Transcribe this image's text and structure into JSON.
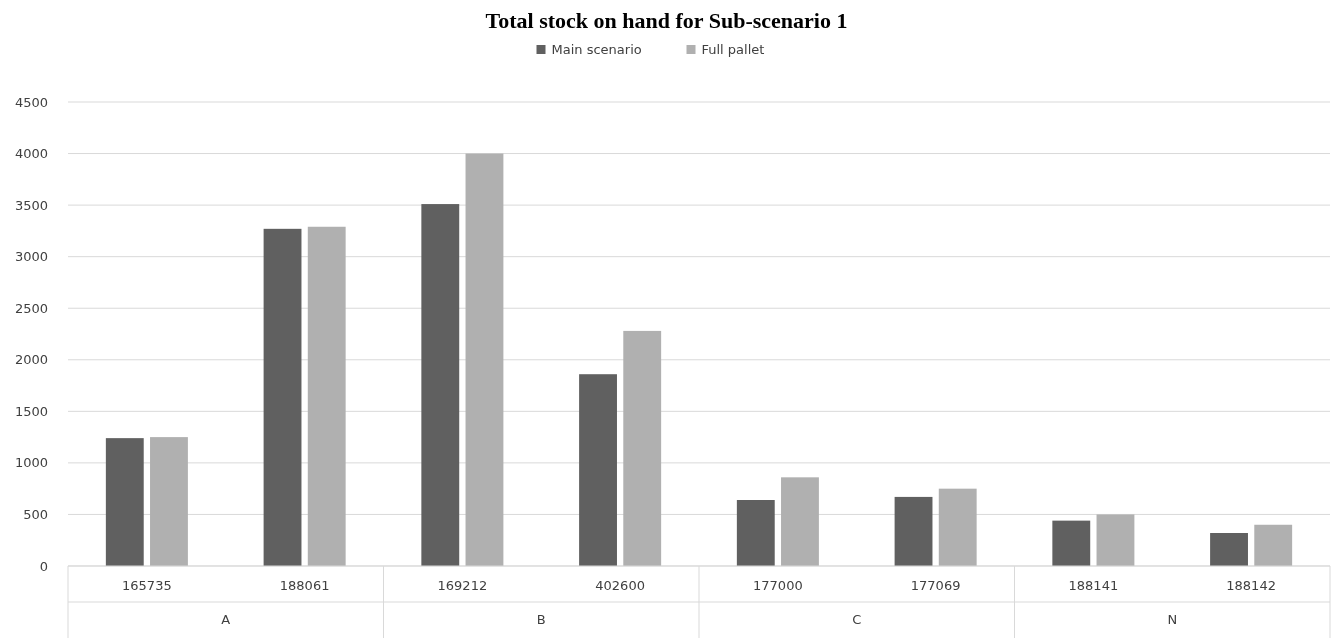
{
  "chart_data": {
    "type": "bar",
    "title": "Total stock on hand for Sub-scenario 1",
    "categories": [
      "165735",
      "188061",
      "169212",
      "402600",
      "177000",
      "177069",
      "188141",
      "188142"
    ],
    "series": [
      {
        "name": "Main scenario",
        "color": "#606060",
        "values": [
          1240,
          3270,
          3510,
          1860,
          640,
          670,
          440,
          320
        ]
      },
      {
        "name": "Full pallet",
        "color": "#b0b0b0",
        "values": [
          1250,
          3290,
          4000,
          2280,
          860,
          750,
          500,
          400
        ]
      }
    ],
    "ylim": [
      0,
      4500
    ],
    "yticks": [
      0,
      500,
      1000,
      1500,
      2000,
      2500,
      3000,
      3500,
      4000,
      4500
    ],
    "grid": "y",
    "legend": "top",
    "annotations": [
      "A",
      "B",
      "C",
      "N"
    ]
  }
}
